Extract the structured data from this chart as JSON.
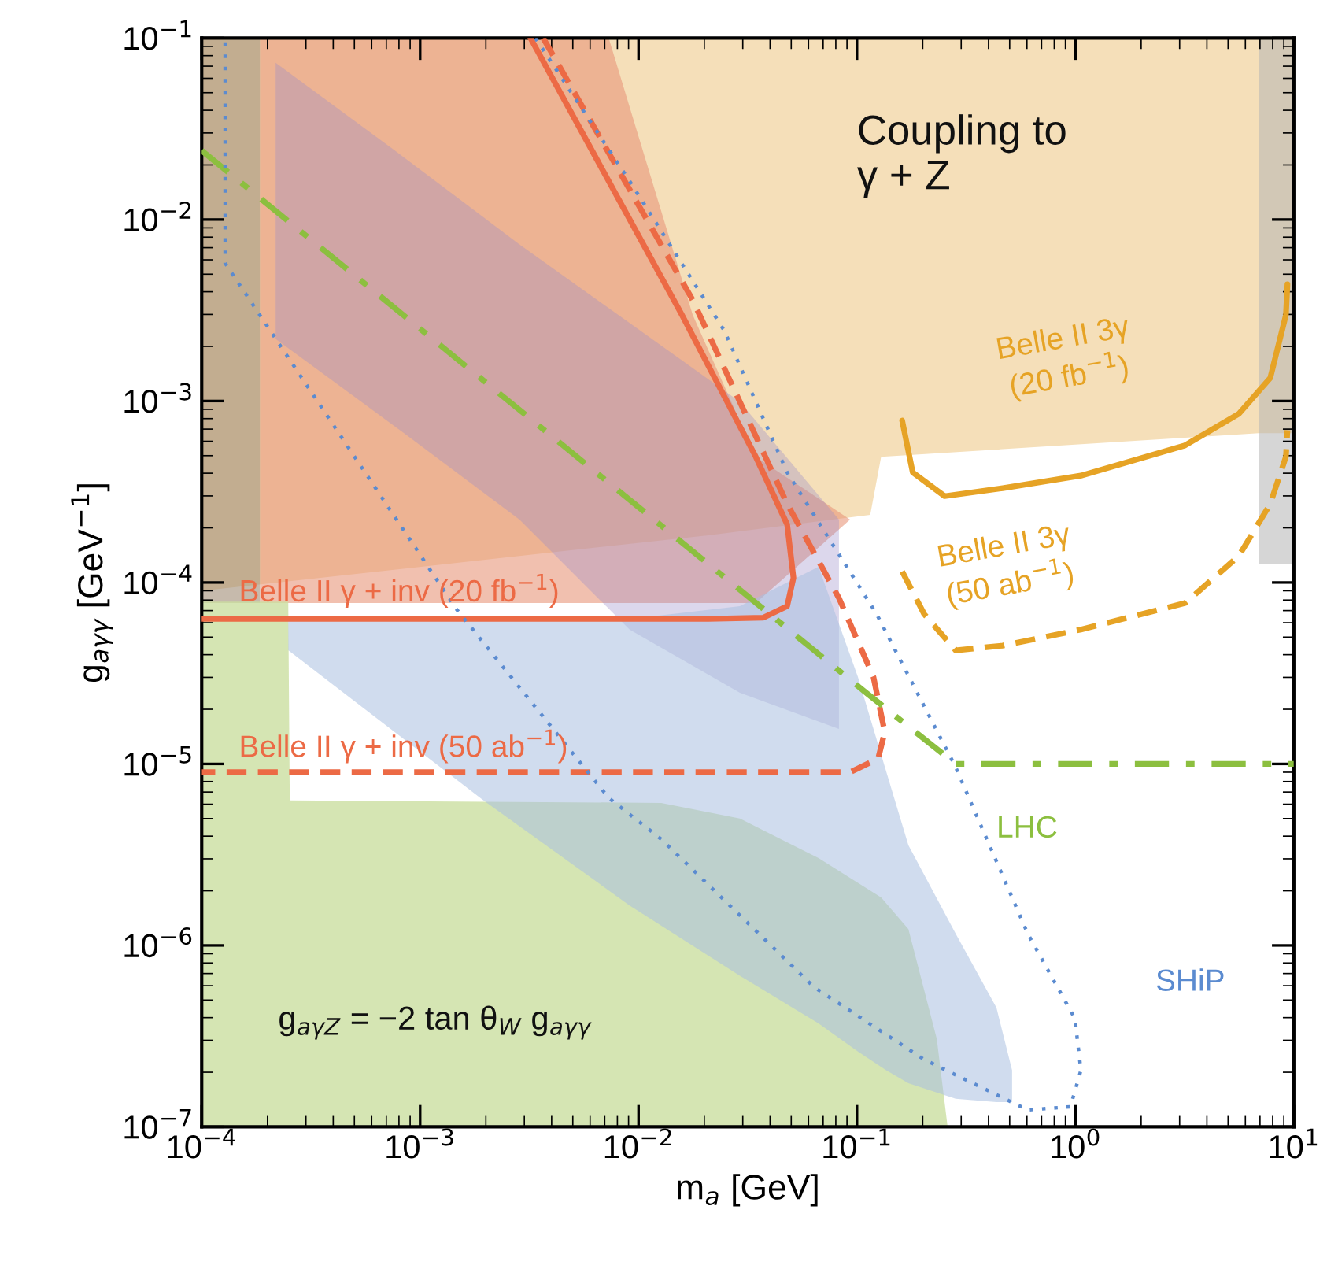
{
  "chart_data": {
    "type": "line",
    "xlabel": "m$_{a}$ [GeV]",
    "ylabel": "g$_{aγγ}$ [GeV$^{−1}$]",
    "log": "xy",
    "xlim": [
      0.0001,
      10
    ],
    "ylim": [
      1e-07,
      0.1
    ],
    "xticks": [
      {
        "value": 0.0001,
        "label": "10$^{−4}$"
      },
      {
        "value": 0.001,
        "label": "10$^{−3}$"
      },
      {
        "value": 0.01,
        "label": "10$^{−2}$"
      },
      {
        "value": 0.1,
        "label": "10$^{−1}$"
      },
      {
        "value": 1,
        "label": "10$^{0}$"
      },
      {
        "value": 10,
        "label": "10$^{1}$"
      }
    ],
    "yticks": [
      {
        "value": 1e-07,
        "label": "10$^{−7}$"
      },
      {
        "value": 1e-06,
        "label": "10$^{−6}$"
      },
      {
        "value": 1e-05,
        "label": "10$^{−5}$"
      },
      {
        "value": 0.0001,
        "label": "10$^{−4}$"
      },
      {
        "value": 0.001,
        "label": "10$^{−3}$"
      },
      {
        "value": 0.01,
        "label": "10$^{−2}$"
      },
      {
        "value": 0.1,
        "label": "10$^{−1}$"
      }
    ],
    "grid": false,
    "legend": false,
    "annotations": [
      "Coupling to\nγ + Z",
      "g$_{aγZ}$ = −2 tan θ$_{W}$ g$_{aγγ}$"
    ],
    "series": [
      {
        "type": "area",
        "color": "#f5dfb9",
        "x": [
          0.0001,
          10,
          10,
          6.9,
          0.129,
          0.115,
          0.0209,
          0.0001
        ],
        "values": [
          0.1,
          0.1,
          0.000665,
          0.000665,
          0.000493,
          0.000236,
          0.000182,
          9e-05
        ]
      },
      {
        "type": "area",
        "color": "#b5b5b5",
        "x": [
          6.9,
          10,
          10,
          6.9
        ],
        "values": [
          0.1,
          0.1,
          0.000127,
          0.000127
        ]
      },
      {
        "type": "area",
        "color": "#a08c74",
        "x": [
          0.0001,
          0.000185,
          0.000185,
          0.0001
        ],
        "values": [
          0.1,
          0.1,
          7.7e-05,
          7.7e-05
        ]
      },
      {
        "type": "area",
        "color": "#e8967a",
        "x": [
          0.000185,
          0.0073,
          0.0177,
          0.0344,
          0.093,
          0.0344,
          0.000185
        ],
        "values": [
          0.1,
          0.1,
          0.00298,
          0.000493,
          0.000222,
          7.7e-05,
          7.7e-05
        ]
      },
      {
        "type": "area",
        "color": "#9a8cc8",
        "x": [
          0.000218,
          0.00076,
          0.00285,
          0.0091,
          0.0291,
          0.0827,
          0.0827,
          0.0291,
          0.0091,
          0.00285,
          0.00076,
          0.000218
        ],
        "values": [
          0.073,
          0.0242,
          0.0073,
          0.00269,
          0.00099,
          0.000222,
          1.56e-05,
          2.47e-05,
          5.5e-05,
          0.000222,
          0.00073,
          0.0022
        ]
      },
      {
        "type": "area",
        "color": "#cadfa0",
        "x": [
          0.0001,
          0.000249,
          0.000253,
          0.0127,
          0.0291,
          0.0667,
          0.129,
          0.172,
          0.232,
          0.26,
          0.0001
        ],
        "values": [
          7.85e-05,
          7.85e-05,
          6.3e-06,
          6.1e-06,
          5e-06,
          3.03e-06,
          1.84e-06,
          1.23e-06,
          3.05e-07,
          1e-07,
          1e-07
        ]
      },
      {
        "type": "area",
        "color": "#a9c0e0",
        "x": [
          0.000249,
          0.00195,
          0.0091,
          0.0291,
          0.0667,
          0.101,
          0.136,
          0.172,
          0.283,
          0.435,
          0.513,
          0.513,
          0.435,
          0.283,
          0.172,
          0.136,
          0.101,
          0.0667,
          0.0291,
          0.0091,
          0.00195,
          0.000249
        ],
        "values": [
          6.3e-05,
          6.3e-05,
          6.3e-05,
          7.4e-05,
          0.000122,
          3.01e-05,
          9.1e-06,
          3.56e-06,
          1.16e-06,
          4.54e-07,
          2.05e-07,
          1.37e-07,
          1.37e-07,
          1.43e-07,
          1.74e-07,
          2.05e-07,
          2.6e-07,
          3.72e-07,
          6.8e-07,
          1.66e-06,
          6.3e-06,
          4.23e-05
        ]
      },
      {
        "name": "Belle II γ + inv (20 fb$^{−1}$)",
        "color": "#ec6a45",
        "line_style": "solid",
        "x": [
          0.0032,
          0.0158,
          0.0344,
          0.0479,
          0.0512,
          0.0479,
          0.0373,
          0.0209,
          0.0001
        ],
        "values": [
          0.1,
          0.00298,
          0.000493,
          0.000209,
          0.000106,
          7.4e-05,
          6.4e-05,
          6.3e-05,
          6.3e-05
        ]
      },
      {
        "name": "Belle II γ + inv (50 ab$^{−1}$)",
        "color": "#ec6a45",
        "line_style": "dashed",
        "x": [
          0.00366,
          0.0177,
          0.0479,
          0.0827,
          0.119,
          0.134,
          0.125,
          0.093,
          0.0479,
          0.0001
        ],
        "values": [
          0.1,
          0.0036,
          0.000271,
          8.2e-05,
          3.01e-05,
          1.5e-05,
          1.07e-05,
          9e-06,
          9e-06,
          9e-06
        ]
      },
      {
        "name": "Belle II 3γ\n(20 fb$^{−1}$)",
        "color": "#e6a325",
        "line_style": "solid",
        "x": [
          0.161,
          0.18,
          0.252,
          0.465,
          1.06,
          3.18,
          5.6,
          7.8,
          9.2,
          9.35
        ],
        "values": [
          0.00078,
          0.000404,
          0.000299,
          0.000331,
          0.000388,
          0.00057,
          0.00085,
          0.00134,
          0.00298,
          0.0044
        ]
      },
      {
        "name": "Belle II 3γ\n(50 ab$^{−1}$)",
        "color": "#e6a325",
        "line_style": "dashed",
        "x": [
          0.161,
          0.203,
          0.283,
          0.465,
          1.06,
          3.18,
          5.6,
          7.8,
          9.2,
          9.35
        ],
        "values": [
          0.000115,
          6.7e-05,
          4.23e-05,
          4.49e-05,
          5.5e-05,
          7.7e-05,
          0.00014,
          0.000271,
          0.000493,
          0.00069
        ]
      },
      {
        "name": "LHC",
        "color": "#8cbf3f",
        "line_style": "dashdot",
        "x": [
          0.0001,
          0.11,
          0.283,
          10
        ],
        "values": [
          0.024,
          2.47e-05,
          1e-05,
          1e-05
        ]
      },
      {
        "name": "SHiP",
        "color": "#5b8bd0",
        "line_style": "dotted",
        "x": [
          0.00337,
          0.0091,
          0.0247,
          0.0479,
          0.123,
          0.283,
          0.605,
          0.995,
          1.06,
          0.948,
          0.605,
          0.203,
          0.0635,
          0.0127,
          0.0073,
          0.00147,
          0.000128,
          0.000128
        ],
        "values": [
          0.1,
          0.0163,
          0.00244,
          0.000404,
          6.7e-05,
          9.6e-06,
          1.16e-06,
          3.95e-07,
          2.05e-07,
          1.29e-07,
          1.24e-07,
          2.35e-07,
          5.9e-07,
          3.85e-06,
          6.5e-06,
          7.1e-05,
          0.00575,
          0.1
        ]
      }
    ]
  }
}
